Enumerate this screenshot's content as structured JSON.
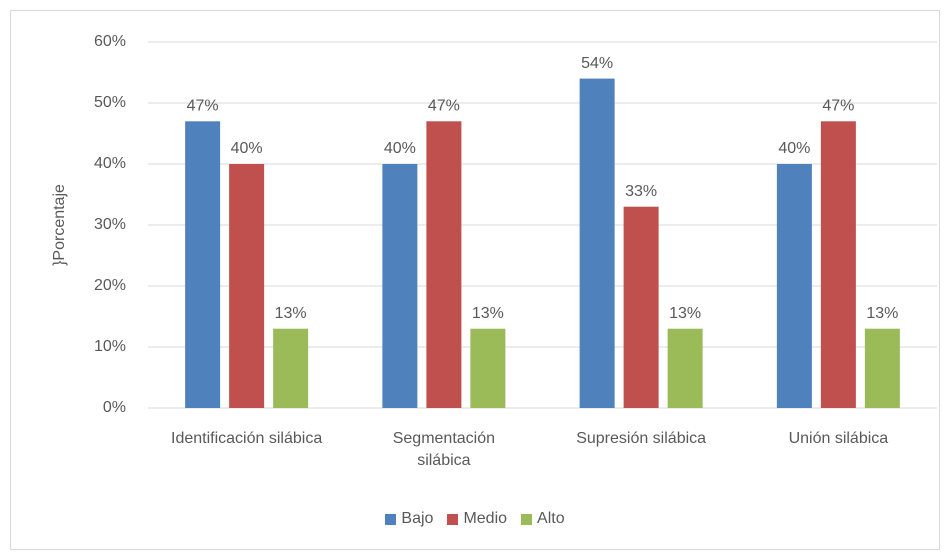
{
  "chart_data": {
    "type": "bar",
    "y_label": "}Porcentaje",
    "categories": [
      "Identificación silábica",
      "Segmentación silábica",
      "Supresión silábica",
      "Unión silábica"
    ],
    "series": [
      {
        "name": "Bajo",
        "color": "#4f81bd",
        "values": [
          47,
          40,
          54,
          40
        ],
        "value_labels": [
          "47%",
          "40%",
          "54%",
          "40%"
        ]
      },
      {
        "name": "Medio",
        "color": "#c0504d",
        "values": [
          40,
          47,
          33,
          47
        ],
        "value_labels": [
          "40%",
          "47%",
          "33%",
          "47%"
        ]
      },
      {
        "name": "Alto",
        "color": "#9bbb59",
        "values": [
          13,
          13,
          13,
          13
        ],
        "value_labels": [
          "13%",
          "13%",
          "13%",
          "13%"
        ]
      }
    ],
    "ylim": [
      0,
      60
    ],
    "yticks": [
      {
        "value": 0,
        "label": "0%"
      },
      {
        "value": 10,
        "label": "10%"
      },
      {
        "value": 20,
        "label": "20%"
      },
      {
        "value": 30,
        "label": "30%"
      },
      {
        "value": 40,
        "label": "40%"
      },
      {
        "value": 50,
        "label": "50%"
      },
      {
        "value": 60,
        "label": "60%"
      }
    ],
    "grid": true,
    "legend": "bottom"
  }
}
